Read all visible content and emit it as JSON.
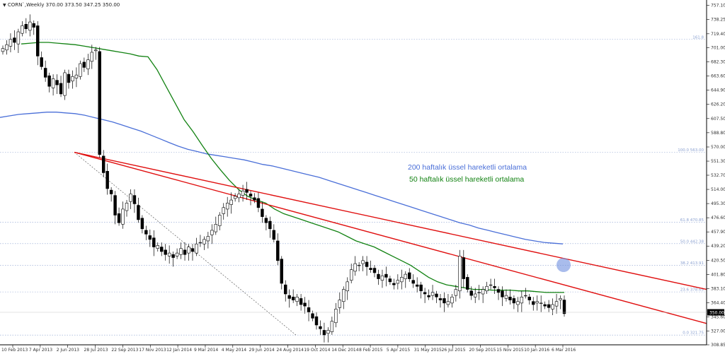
{
  "header": {
    "symbol": "CORN`,Weekly",
    "ohlc": "370.00 373.50 347.25 350.00",
    "menu_icon": "triangle-down-icon"
  },
  "annotations": {
    "ema200_label": "200 haftalık üssel hareketli ortalama",
    "ema50_label": "50 haftalık üssel hareketli ortalama"
  },
  "colors": {
    "ema200": "#4a6fd8",
    "ema50": "#128212",
    "trendline": "#e01010",
    "fib": "#8aa0d0",
    "bg": "#ffffff"
  },
  "chart_data": {
    "type": "candlestick",
    "symbol": "CORN",
    "timeframe": "Weekly",
    "y_range": [
      308.85,
      764.0
    ],
    "y_ticks": [
      757.1,
      738.25,
      719.4,
      701.0,
      682.3,
      663.6,
      644.9,
      626.2,
      607.5,
      588.8,
      570.0,
      551.3,
      532.7,
      514.0,
      495.3,
      476.6,
      457.9,
      439.2,
      420.5,
      401.8,
      383.1,
      364.4,
      345.6,
      327.0,
      308.85
    ],
    "x_labels": [
      "10 Feb 2013",
      "7 Apr 2013",
      "2 Jun 2013",
      "28 Jul 2013",
      "22 Sep 2013",
      "17 Nov 2013",
      "12 Jan 2014",
      "9 Mar 2014",
      "4 May 2014",
      "29 Jun 2014",
      "24 Aug 2014",
      "19 Oct 2014",
      "14 Dec 2014",
      "8 Feb 2015",
      "5 Apr 2015",
      "31 May 2015",
      "26 Jul 2015",
      "20 Sep 2015",
      "15 Nov 2015",
      "10 Jan 2016",
      "6 Mar 2016"
    ],
    "current_price": "350.00",
    "fib_levels": [
      {
        "label": "161.8",
        "value": 712.0
      },
      {
        "label": "100.0 563.00",
        "value": 563.0
      },
      {
        "label": "61.8 470.85",
        "value": 470.85
      },
      {
        "label": "50.0 442.38",
        "value": 442.38
      },
      {
        "label": "38.2 413.91",
        "value": 413.91
      },
      {
        "label": "23.6 378.69",
        "value": 378.69
      },
      {
        "label": "0.0 321.75",
        "value": 321.75
      }
    ],
    "candles_close": [
      700,
      705,
      712,
      708,
      722,
      730,
      726,
      735,
      728,
      690,
      676,
      662,
      650,
      660,
      652,
      640,
      668,
      655,
      663,
      665,
      680,
      675,
      685,
      695,
      698,
      560,
      536,
      515,
      508,
      480,
      470,
      488,
      496,
      508,
      495,
      474,
      462,
      455,
      448,
      438,
      440,
      432,
      428,
      430,
      424,
      430,
      436,
      428,
      438,
      432,
      442,
      444,
      448,
      452,
      460,
      468,
      480,
      490,
      496,
      500,
      505,
      508,
      512,
      510,
      505,
      500,
      490,
      478,
      470,
      462,
      448,
      420,
      390,
      376,
      370,
      368,
      372,
      362,
      360,
      352,
      344,
      335,
      330,
      322,
      328,
      340,
      356,
      368,
      382,
      392,
      408,
      416,
      414,
      420,
      412,
      408,
      404,
      396,
      400,
      398,
      392,
      388,
      394,
      398,
      402,
      396,
      390,
      386,
      380,
      376,
      372,
      378,
      372,
      368,
      364,
      366,
      372,
      382,
      426,
      396,
      382,
      374,
      376,
      378,
      382,
      386,
      388,
      384,
      378,
      372,
      374,
      368,
      364,
      366,
      372,
      374,
      368,
      362,
      366,
      364,
      360,
      358,
      362,
      366,
      370,
      350
    ],
    "ema50": [
      706,
      707,
      708,
      708,
      707,
      706,
      705,
      703,
      701,
      699,
      697,
      695,
      693,
      690,
      689,
      672,
      650,
      628,
      606,
      590,
      572,
      555,
      540,
      526,
      514,
      505,
      500,
      496,
      488,
      482,
      478,
      474,
      470,
      466,
      462,
      458,
      452,
      446,
      442,
      438,
      432,
      426,
      420,
      414,
      406,
      398,
      392,
      388,
      386,
      384,
      382,
      382,
      381,
      381,
      381,
      380,
      380,
      379,
      378,
      378,
      378
    ],
    "ema200": [
      609,
      611,
      613,
      614,
      615,
      616,
      616,
      615,
      614,
      612,
      609,
      606,
      603,
      599,
      595,
      591,
      586,
      581,
      576,
      571,
      567,
      564,
      561,
      559,
      557,
      555,
      553,
      550,
      547,
      545,
      542,
      539,
      536,
      533,
      530,
      526,
      522,
      518,
      514,
      510,
      506,
      502,
      498,
      494,
      490,
      486,
      482,
      478,
      474,
      470,
      467,
      463,
      460,
      457,
      454,
      451,
      448,
      446,
      444,
      443,
      442
    ],
    "trendlines": [
      {
        "from": [
          "2 Jun 2013",
          563.0
        ],
        "to": [
          "6 Mar 2016",
          355.0
        ]
      },
      {
        "from": [
          "2 Jun 2013",
          563.0
        ],
        "to": [
          "6 Mar 2016",
          380.0
        ]
      }
    ],
    "title": "",
    "xlabel": "",
    "ylabel": ""
  }
}
